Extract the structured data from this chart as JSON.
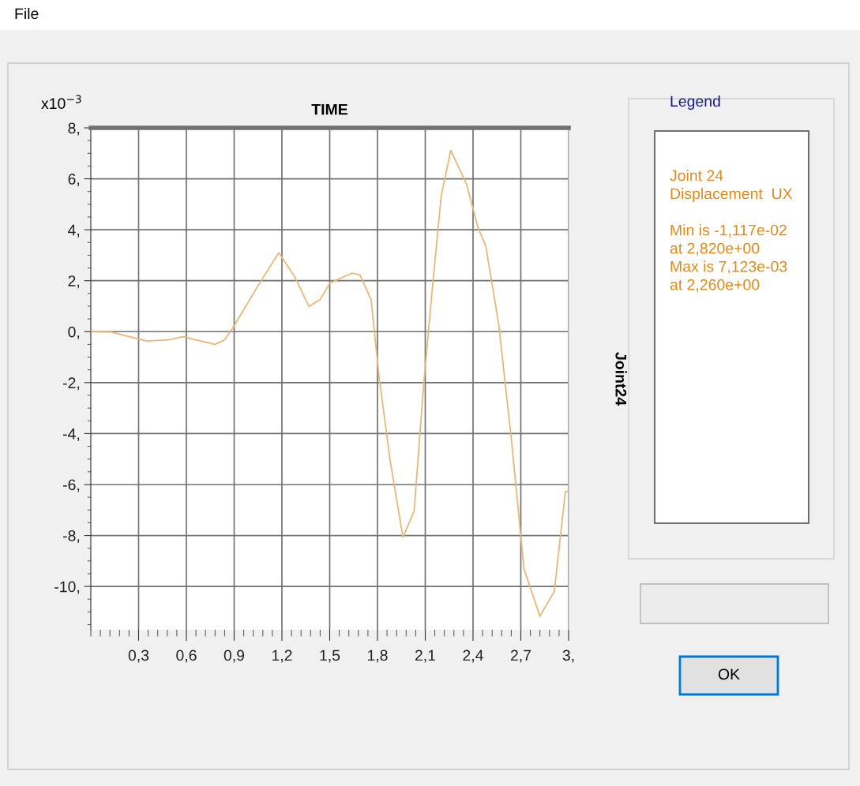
{
  "chart_data": {
    "type": "line",
    "title": "TIME",
    "ylabel": "Joint24",
    "legend_title": "Legend",
    "x": [
      0,
      0.13,
      0.35,
      0.49,
      0.58,
      0.66,
      0.78,
      0.84,
      0.89,
      1.04,
      1.18,
      1.28,
      1.37,
      1.44,
      1.5,
      1.64,
      1.69,
      1.76,
      1.81,
      1.88,
      1.96,
      2.03,
      2.09,
      2.14,
      2.2,
      2.26,
      2.36,
      2.43,
      2.48,
      2.56,
      2.64,
      2.72,
      2.82,
      2.91,
      2.98,
      3.0
    ],
    "series": [
      {
        "color": "#e8b87a",
        "values": [
          0,
          -0.02,
          -0.37,
          -0.32,
          -0.2,
          -0.32,
          -0.5,
          -0.32,
          0.13,
          1.7,
          3.1,
          2.16,
          0.99,
          1.26,
          1.9,
          2.3,
          2.23,
          1.25,
          -1.77,
          -5.08,
          -8.07,
          -7.04,
          -2.07,
          1.4,
          5.32,
          7.12,
          5.77,
          4.11,
          3.36,
          0.34,
          -4.18,
          -9.31,
          -11.17,
          -10.2,
          -6.27,
          -6.3
        ]
      }
    ],
    "xlim": [
      0,
      3.0
    ],
    "ylim": [
      -11.7,
      8.0
    ],
    "xticks": [
      {
        "value": 0.3,
        "label": "0,3"
      },
      {
        "value": 0.6,
        "label": "0,6"
      },
      {
        "value": 0.9,
        "label": "0,9"
      },
      {
        "value": 1.2,
        "label": "1,2"
      },
      {
        "value": 1.5,
        "label": "1,5"
      },
      {
        "value": 1.8,
        "label": "1,8"
      },
      {
        "value": 2.1,
        "label": "2,1"
      },
      {
        "value": 2.4,
        "label": "2,4"
      },
      {
        "value": 2.7,
        "label": "2,7"
      },
      {
        "value": 3.0,
        "label": "3,"
      }
    ],
    "yticks": [
      {
        "value": -10,
        "label": "-10,"
      },
      {
        "value": -8,
        "label": "-8,"
      },
      {
        "value": -6,
        "label": "-6,"
      },
      {
        "value": -4,
        "label": "-4,"
      },
      {
        "value": -2,
        "label": "-2,"
      },
      {
        "value": 0,
        "label": "0,"
      },
      {
        "value": 2,
        "label": "2,"
      },
      {
        "value": 4,
        "label": "4,"
      },
      {
        "value": 6,
        "label": "6,"
      },
      {
        "value": 8,
        "label": "8,"
      }
    ],
    "grid": true,
    "marker": "none",
    "line_style": "solid",
    "annotations": [
      "x10$^{−3}$",
      "Joint 24\nDisplacement  UX\n\nMin is -1,117e-02\nat 2,820e+00\nMax is 7,123e-03\nat 2,260e+00",
      "File",
      "OK"
    ]
  }
}
